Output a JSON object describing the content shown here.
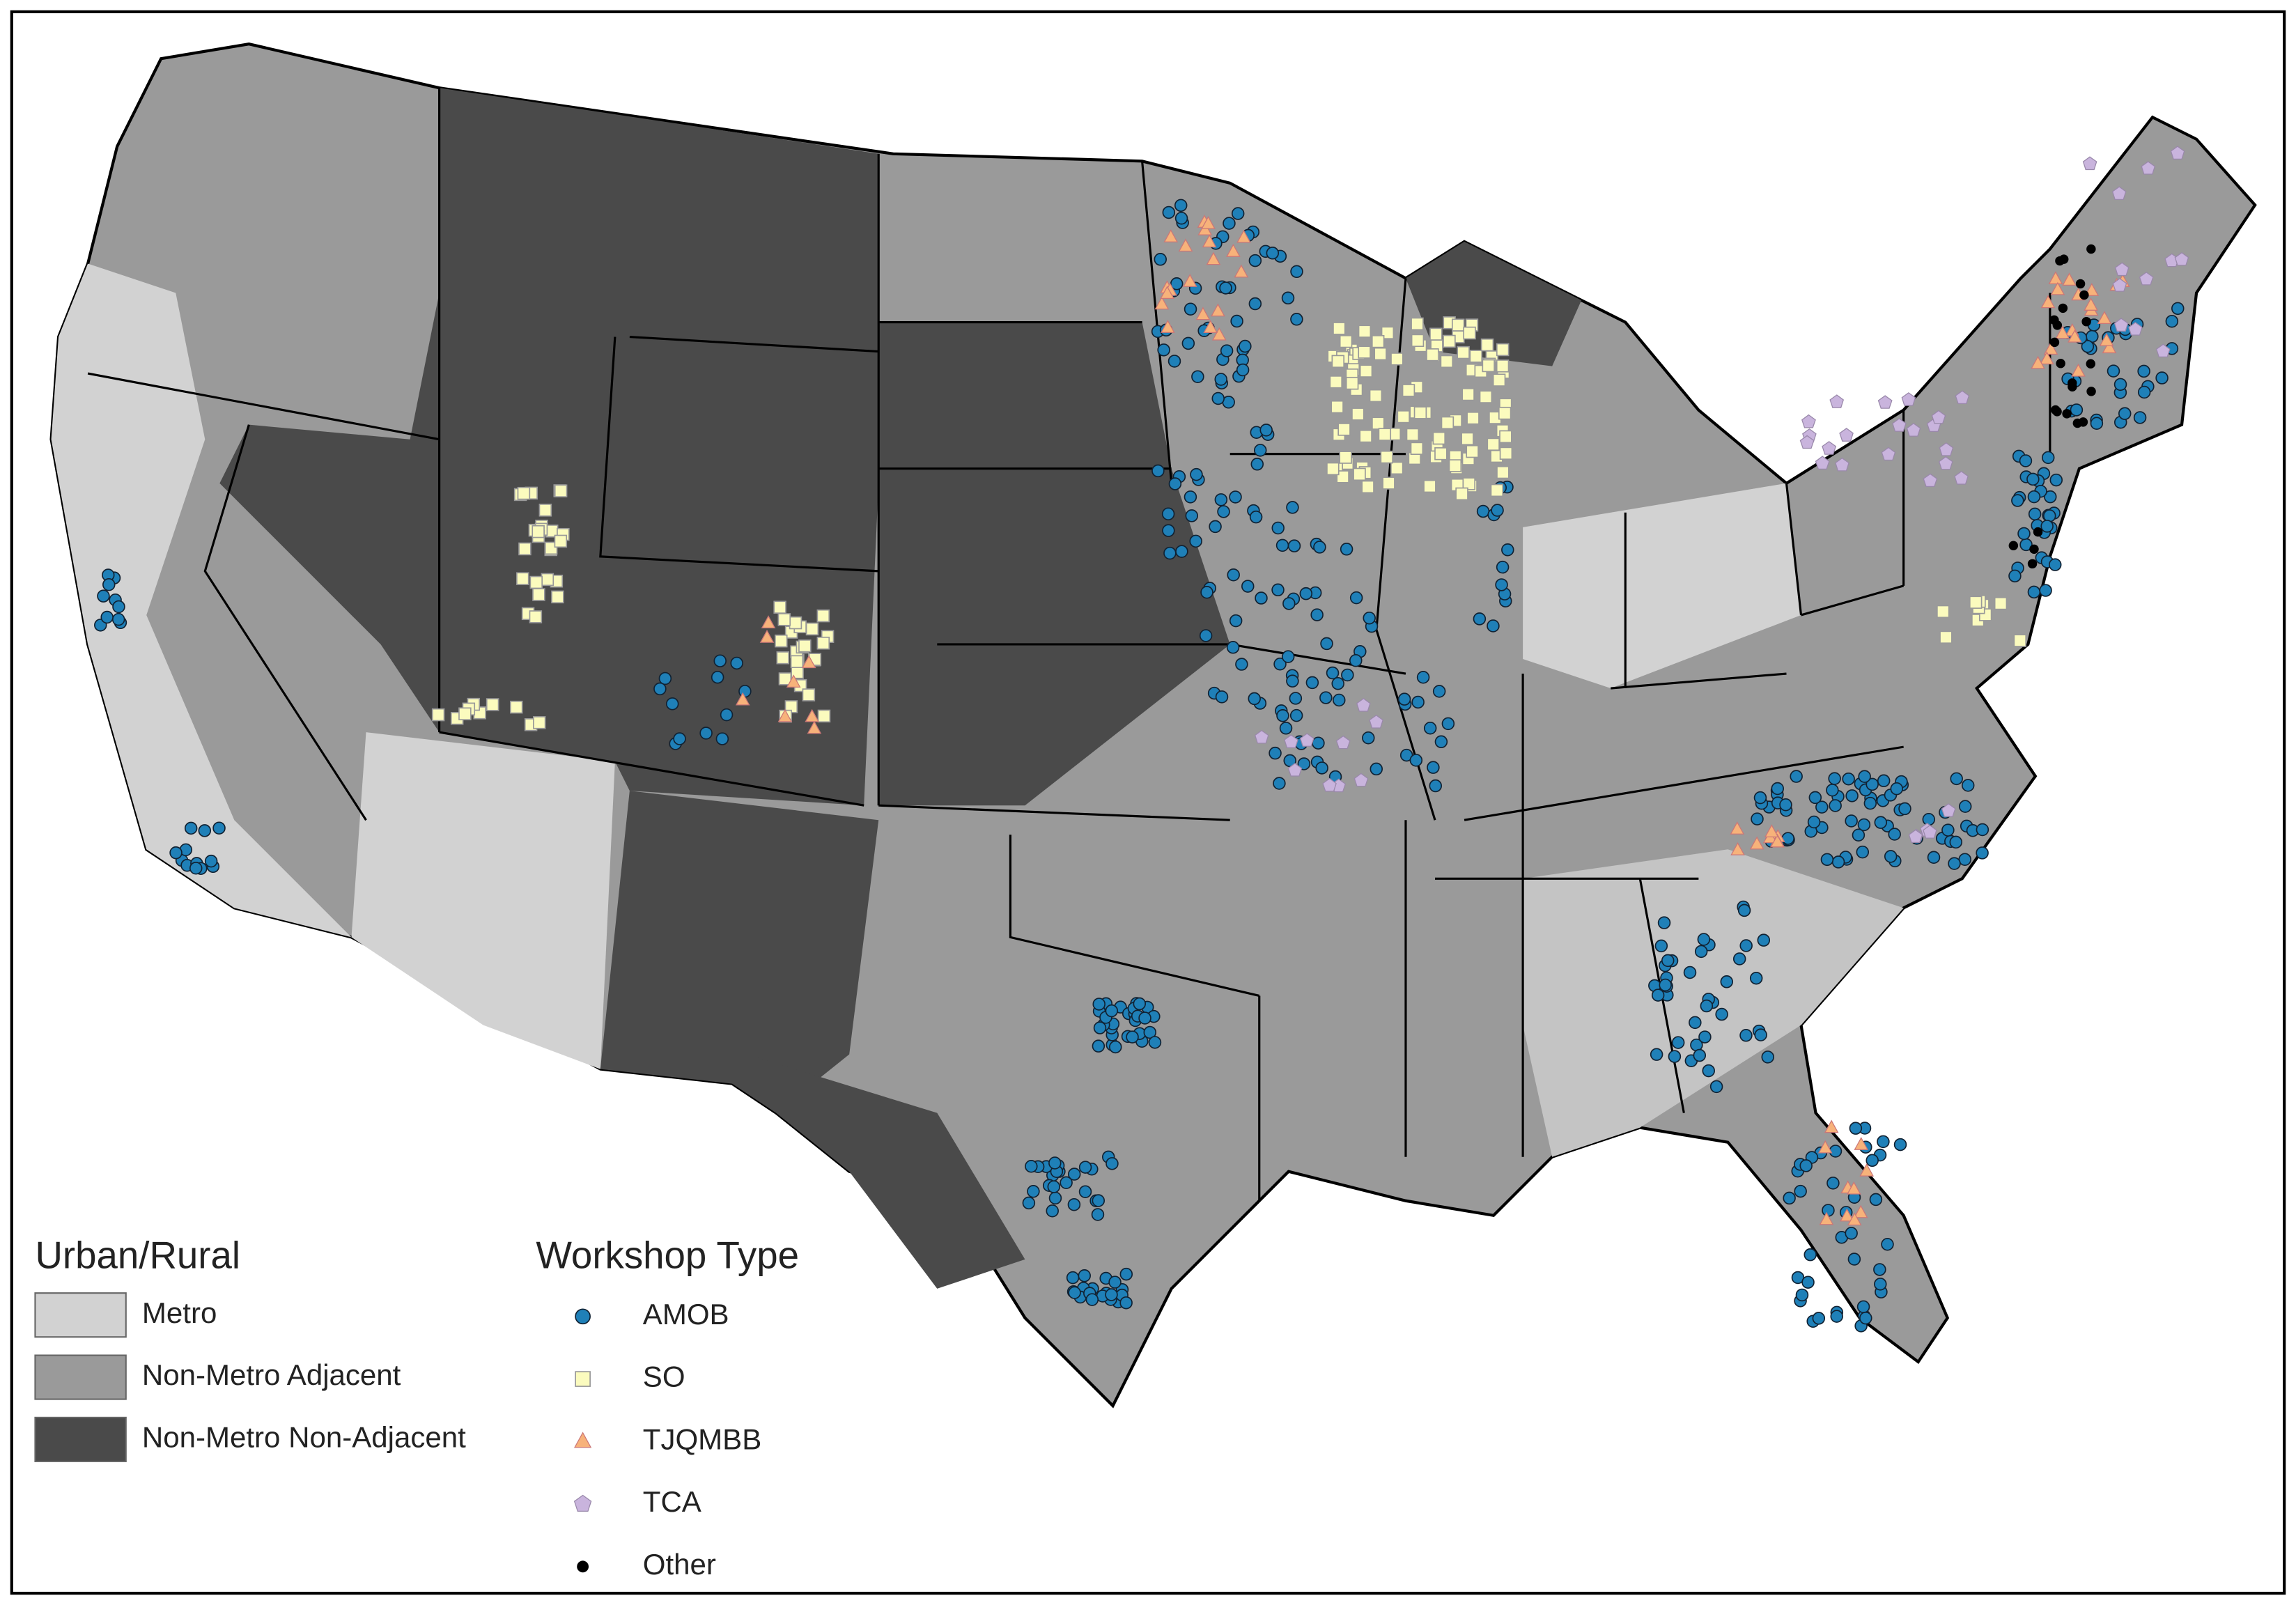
{
  "legends": [
    {
      "title": "Urban/Rural",
      "items": [
        {
          "label": "Metro",
          "color": "#d2d2d2"
        },
        {
          "label": "Non-Metro Adjacent",
          "color": "#9a9a9a"
        },
        {
          "label": "Non-Metro Non-Adjacent",
          "color": "#4a4a4a"
        }
      ]
    },
    {
      "title": "Workshop Type",
      "items": [
        {
          "label": "AMOB",
          "color": "#1f80b8",
          "marker": "circle"
        },
        {
          "label": "SO",
          "color": "#fbfbbe",
          "marker": "square"
        },
        {
          "label": "TJQMBB",
          "color": "#f7b27a",
          "marker": "triangle"
        },
        {
          "label": "TCA",
          "color": "#c9b4dd",
          "marker": "pentagon"
        },
        {
          "label": "Other",
          "color": "#000000",
          "marker": "dot"
        }
      ]
    }
  ]
}
